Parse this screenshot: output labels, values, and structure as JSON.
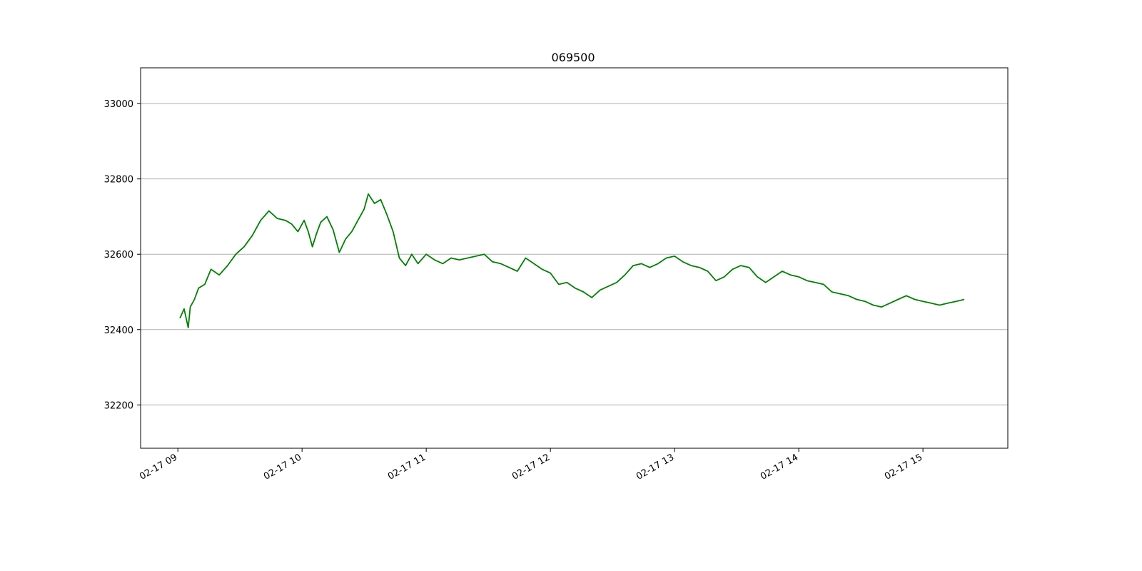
{
  "chart_data": {
    "type": "line",
    "title": "069500",
    "xlabel": "",
    "ylabel": "",
    "x_axis": {
      "unit": "datetime",
      "range": [
        "02-17 08:42",
        "02-17 15:41"
      ],
      "ticks": [
        {
          "value": "02-17 09:00",
          "label": "02-17 09"
        },
        {
          "value": "02-17 10:00",
          "label": "02-17 10"
        },
        {
          "value": "02-17 11:00",
          "label": "02-17 11"
        },
        {
          "value": "02-17 12:00",
          "label": "02-17 12"
        },
        {
          "value": "02-17 13:00",
          "label": "02-17 13"
        },
        {
          "value": "02-17 14:00",
          "label": "02-17 14"
        },
        {
          "value": "02-17 15:00",
          "label": "02-17 15"
        }
      ]
    },
    "y_axis": {
      "range": [
        32085,
        33095
      ],
      "ticks": [
        {
          "value": 32200,
          "label": "32200"
        },
        {
          "value": 32400,
          "label": "32400"
        },
        {
          "value": 32600,
          "label": "32600"
        },
        {
          "value": 32800,
          "label": "32800"
        },
        {
          "value": 33000,
          "label": "33000"
        }
      ]
    },
    "grid": "horizontal",
    "series": [
      {
        "color": "#008000",
        "x": [
          "02-17 09:01",
          "02-17 09:03",
          "02-17 09:05",
          "02-17 09:06",
          "02-17 09:08",
          "02-17 09:10",
          "02-17 09:13",
          "02-17 09:16",
          "02-17 09:20",
          "02-17 09:24",
          "02-17 09:28",
          "02-17 09:32",
          "02-17 09:36",
          "02-17 09:40",
          "02-17 09:44",
          "02-17 09:48",
          "02-17 09:52",
          "02-17 09:55",
          "02-17 09:58",
          "02-17 10:01",
          "02-17 10:03",
          "02-17 10:05",
          "02-17 10:07",
          "02-17 10:09",
          "02-17 10:12",
          "02-17 10:15",
          "02-17 10:18",
          "02-17 10:21",
          "02-17 10:24",
          "02-17 10:27",
          "02-17 10:30",
          "02-17 10:32",
          "02-17 10:35",
          "02-17 10:38",
          "02-17 10:41",
          "02-17 10:44",
          "02-17 10:47",
          "02-17 10:50",
          "02-17 10:53",
          "02-17 10:56",
          "02-17 11:00",
          "02-17 11:04",
          "02-17 11:08",
          "02-17 11:12",
          "02-17 11:16",
          "02-17 11:20",
          "02-17 11:24",
          "02-17 11:28",
          "02-17 11:32",
          "02-17 11:36",
          "02-17 11:40",
          "02-17 11:44",
          "02-17 11:48",
          "02-17 11:52",
          "02-17 11:56",
          "02-17 12:00",
          "02-17 12:04",
          "02-17 12:08",
          "02-17 12:12",
          "02-17 12:16",
          "02-17 12:20",
          "02-17 12:24",
          "02-17 12:28",
          "02-17 12:32",
          "02-17 12:36",
          "02-17 12:40",
          "02-17 12:44",
          "02-17 12:48",
          "02-17 12:52",
          "02-17 12:56",
          "02-17 13:00",
          "02-17 13:04",
          "02-17 13:08",
          "02-17 13:12",
          "02-17 13:16",
          "02-17 13:20",
          "02-17 13:24",
          "02-17 13:28",
          "02-17 13:32",
          "02-17 13:36",
          "02-17 13:40",
          "02-17 13:44",
          "02-17 13:48",
          "02-17 13:52",
          "02-17 13:56",
          "02-17 14:00",
          "02-17 14:04",
          "02-17 14:08",
          "02-17 14:12",
          "02-17 14:16",
          "02-17 14:20",
          "02-17 14:24",
          "02-17 14:28",
          "02-17 14:32",
          "02-17 14:36",
          "02-17 14:40",
          "02-17 14:44",
          "02-17 14:48",
          "02-17 14:52",
          "02-17 14:56",
          "02-17 15:00",
          "02-17 15:04",
          "02-17 15:08",
          "02-17 15:12",
          "02-17 15:16",
          "02-17 15:20"
        ],
        "y": [
          32430,
          32455,
          32405,
          32460,
          32480,
          32510,
          32520,
          32560,
          32545,
          32570,
          32600,
          32620,
          32650,
          32690,
          32715,
          32695,
          32690,
          32680,
          32660,
          32690,
          32660,
          32620,
          32655,
          32685,
          32700,
          32665,
          32605,
          32640,
          32660,
          32690,
          32720,
          32760,
          32735,
          32745,
          32705,
          32660,
          32590,
          32570,
          32600,
          32575,
          32600,
          32585,
          32575,
          32590,
          32585,
          32590,
          32595,
          32600,
          32580,
          32575,
          32565,
          32555,
          32590,
          32575,
          32560,
          32550,
          32520,
          32525,
          32510,
          32500,
          32485,
          32505,
          32515,
          32525,
          32545,
          32570,
          32575,
          32565,
          32575,
          32590,
          32595,
          32580,
          32570,
          32565,
          32555,
          32530,
          32540,
          32560,
          32570,
          32565,
          32540,
          32525,
          32540,
          32555,
          32545,
          32540,
          32530,
          32525,
          32520,
          32500,
          32495,
          32490,
          32480,
          32475,
          32465,
          32460,
          32470,
          32480,
          32490,
          32480,
          32475,
          32470,
          32465,
          32470,
          32475,
          32480
        ]
      }
    ]
  }
}
